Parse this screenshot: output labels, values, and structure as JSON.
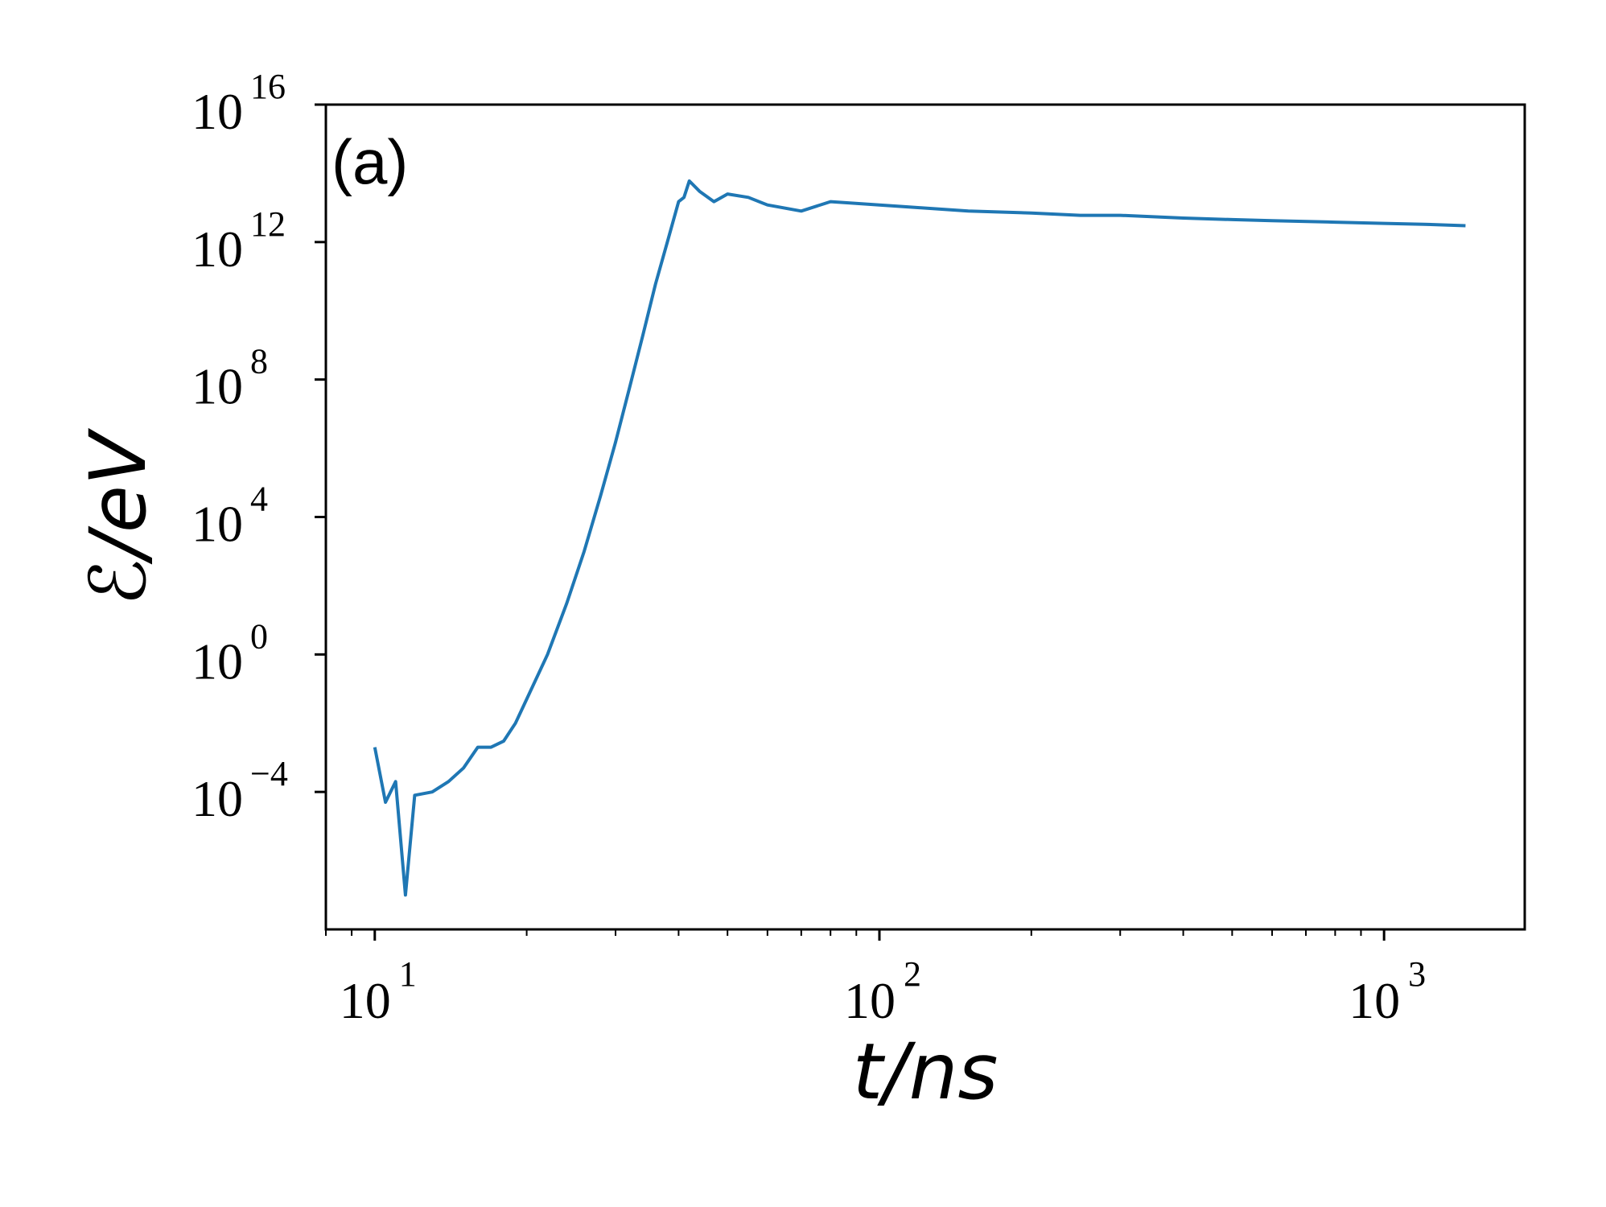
{
  "chart_data": {
    "type": "line",
    "panel_label": "(a)",
    "xlabel": "t/ns",
    "ylabel": "ℰ/eV",
    "x_scale": "log",
    "y_scale": "log",
    "xlim": [
      8,
      1900
    ],
    "ylim": [
      1e-08,
      1e+16
    ],
    "x_ticks": [
      {
        "value": 10,
        "base": "10",
        "exp": "1"
      },
      {
        "value": 100,
        "base": "10",
        "exp": "2"
      },
      {
        "value": 1000,
        "base": "10",
        "exp": "3"
      }
    ],
    "y_ticks": [
      {
        "value": 0.0001,
        "base": "10",
        "exp": "−4"
      },
      {
        "value": 1.0,
        "base": "10",
        "exp": "0"
      },
      {
        "value": 10000.0,
        "base": "10",
        "exp": "4"
      },
      {
        "value": 100000000.0,
        "base": "10",
        "exp": "8"
      },
      {
        "value": 1000000000000.0,
        "base": "10",
        "exp": "12"
      },
      {
        "value": 1e+16,
        "base": "10",
        "exp": "16"
      }
    ],
    "grid": false,
    "colors": {
      "series": "#1f77b4"
    },
    "series": [
      {
        "x": [
          10,
          10.5,
          11,
          11.5,
          12,
          13,
          14,
          15,
          16,
          17,
          18,
          19,
          20,
          22,
          24,
          26,
          28,
          30,
          32,
          34,
          36,
          38,
          40,
          41,
          42,
          44,
          47,
          50,
          55,
          60,
          70,
          80,
          100,
          120,
          150,
          200,
          250,
          300,
          400,
          500,
          600,
          800,
          1000,
          1200,
          1450
        ],
        "y": [
          0.002,
          5e-05,
          0.0002,
          1e-07,
          8e-05,
          0.0001,
          0.0002,
          0.0005,
          0.002,
          0.002,
          0.003,
          0.01,
          0.05,
          1,
          30,
          1000,
          40000,
          1500000,
          60000000,
          2000000000,
          60000000000,
          1000000000000,
          15000000000000,
          20000000000000,
          60000000000000,
          30000000000000,
          15000000000000,
          25000000000000,
          20000000000000,
          12000000000000,
          8000000000000,
          15000000000000,
          12000000000000,
          10000000000000,
          8000000000000,
          7000000000000,
          6000000000000,
          6000000000000,
          5000000000000,
          4500000000000,
          4200000000000,
          3800000000000,
          3500000000000,
          3300000000000,
          3000000000000
        ]
      }
    ]
  }
}
